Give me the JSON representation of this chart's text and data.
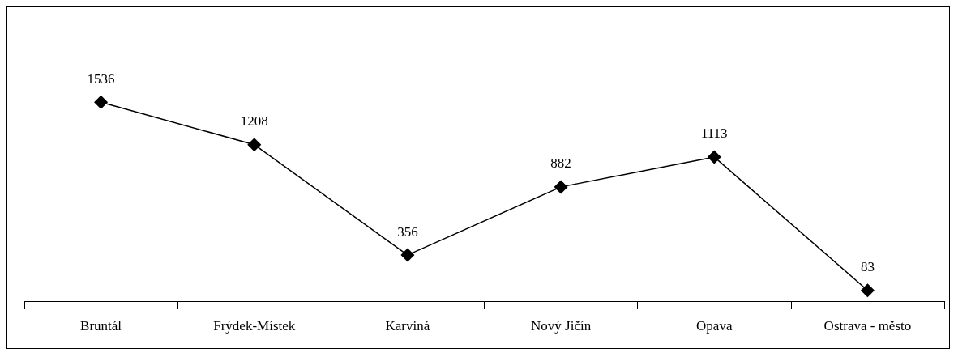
{
  "chart_data": {
    "type": "line",
    "categories": [
      "Bruntál",
      "Frýdek-Místek",
      "Karviná",
      "Nový Jičín",
      "Opava",
      "Ostrava - město"
    ],
    "series": [
      {
        "color": "#000000",
        "values": [
          1536,
          1208,
          356,
          882,
          1113,
          83
        ]
      }
    ],
    "data_labels": true,
    "marker": "diamond",
    "line_style": "solid",
    "tick_labels": "x"
  }
}
